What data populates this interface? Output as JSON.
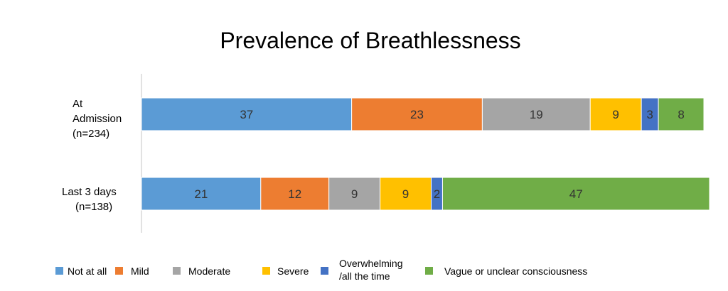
{
  "chart_data": {
    "type": "bar",
    "orientation": "horizontal",
    "stacked": true,
    "title": "Prevalence of Breathlessness",
    "categories": [
      [
        "At",
        "Admission",
        "(n=234)"
      ],
      [
        "Last 3 days",
        "(n=138)"
      ]
    ],
    "xlim": [
      0,
      100
    ],
    "grid": false,
    "legend_position": "bottom",
    "series": [
      {
        "name": "Not at all",
        "color": "#5B9BD5",
        "values": [
          37,
          21
        ]
      },
      {
        "name": "Mild",
        "color": "#ED7D31",
        "values": [
          23,
          12
        ]
      },
      {
        "name": "Moderate",
        "color": "#A5A5A5",
        "values": [
          19,
          9
        ]
      },
      {
        "name": "Severe",
        "color": "#FFC000",
        "values": [
          9,
          9
        ]
      },
      {
        "name": "Overwhelming\n/all the time",
        "color": "#4472C4",
        "values": [
          3,
          2
        ]
      },
      {
        "name": "Vague or unclear consciousness",
        "color": "#70AD47",
        "values": [
          8,
          47
        ]
      }
    ]
  }
}
